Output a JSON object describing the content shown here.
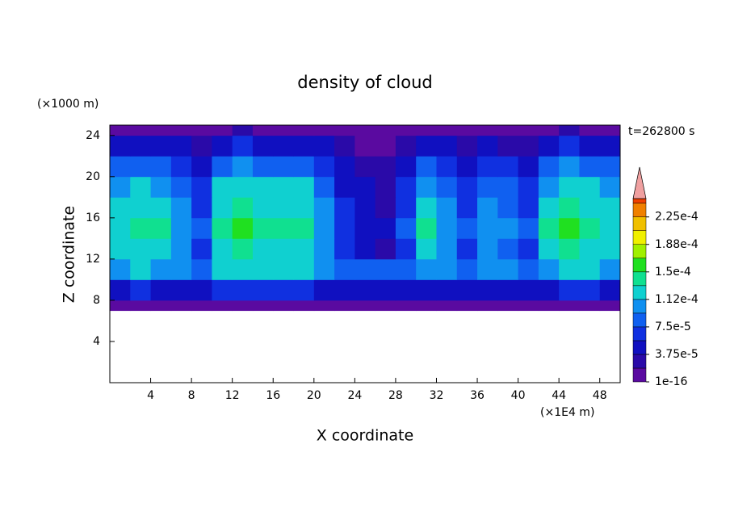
{
  "chart_data": {
    "type": "contour",
    "title": "density of cloud",
    "x_label": "X coordinate",
    "y_label": "Z coordinate",
    "x_unit": "(×1E4 m)",
    "y_unit": "(×1000 m)",
    "annotation": "t=262800 s",
    "xlim": [
      0,
      50
    ],
    "ylim": [
      0,
      25
    ],
    "xticks": [
      4,
      8,
      12,
      16,
      20,
      24,
      28,
      32,
      36,
      40,
      44,
      48
    ],
    "yticks": [
      4,
      8,
      12,
      16,
      20,
      24
    ],
    "x_edges": [
      0,
      2,
      4,
      6,
      8,
      10,
      12,
      14,
      16,
      18,
      20,
      22,
      24,
      26,
      28,
      30,
      32,
      34,
      36,
      38,
      40,
      42,
      44,
      46,
      48,
      50
    ],
    "y_edges": [
      7,
      8,
      10,
      12,
      14,
      16,
      18,
      20,
      22,
      24,
      25
    ],
    "values": [
      [
        1.5e-05,
        1.5e-05,
        1.5e-05,
        1.5e-05,
        1.5e-05,
        1.5e-05,
        1.5e-05,
        1.5e-05,
        1.5e-05,
        1.5e-05,
        1.5e-05,
        1.5e-05,
        1.5e-05,
        1.5e-05,
        1.5e-05,
        1.5e-05,
        1.5e-05,
        1.5e-05,
        1.5e-05,
        1.5e-05,
        1.5e-05,
        1.5e-05,
        1.5e-05,
        1.5e-05,
        1.5e-05
      ],
      [
        5.4e-05,
        5.7e-05,
        5.6e-05,
        5.1e-05,
        4.5e-05,
        5.7e-05,
        6e-05,
        5.7e-05,
        5.7e-05,
        5.7e-05,
        5.1e-05,
        4.2e-05,
        3.9e-05,
        3.8e-05,
        4.5e-05,
        5.6e-05,
        5.1e-05,
        4.5e-05,
        5.1e-05,
        4.8e-05,
        4.5e-05,
        5.6e-05,
        5.9e-05,
        5.7e-05,
        5.4e-05
      ],
      [
        0.000108,
        0.000114,
        0.000111,
        0.000102,
        9e-05,
        0.000114,
        0.00012,
        0.000114,
        0.000114,
        0.000114,
        0.000102,
        8.4e-05,
        7.8e-05,
        7.5e-05,
        9e-05,
        0.000111,
        0.000102,
        9e-05,
        0.000102,
        9.6e-05,
        9e-05,
        0.000111,
        0.000117,
        0.000114,
        0.000108
      ],
      [
        0.000116,
        0.00013,
        0.000123,
        0.000102,
        7.3e-05,
        0.00013,
        0.000145,
        0.00013,
        0.00013,
        0.00013,
        0.000102,
        5.8e-05,
        4.4e-05,
        3.6e-05,
        7.3e-05,
        0.000123,
        0.000102,
        7.3e-05,
        0.000102,
        8.7e-05,
        7.3e-05,
        0.000123,
        0.000138,
        0.00013,
        0.000116
      ],
      [
        0.000128,
        0.000144,
        0.000136,
        0.000112,
        8e-05,
        0.000144,
        0.00016,
        0.000144,
        0.000144,
        0.000144,
        0.000112,
        6.4e-05,
        4.8e-05,
        4e-05,
        8e-05,
        0.000136,
        0.000112,
        8e-05,
        0.000112,
        9.6e-05,
        8e-05,
        0.000136,
        0.000152,
        0.000144,
        0.000128
      ],
      [
        0.000116,
        0.00013,
        0.000123,
        0.000102,
        7.3e-05,
        0.00013,
        0.000145,
        0.00013,
        0.00013,
        0.00013,
        0.000102,
        5.8e-05,
        4.4e-05,
        3.6e-05,
        7.3e-05,
        0.000123,
        0.000102,
        7.3e-05,
        0.000102,
        8.7e-05,
        7.3e-05,
        0.000123,
        0.000138,
        0.00013,
        0.000116
      ],
      [
        0.000104,
        0.000117,
        0.00011,
        9.1e-05,
        6.5e-05,
        0.000117,
        0.00013,
        0.000117,
        0.000117,
        0.000117,
        9.1e-05,
        5.2e-05,
        3.9e-05,
        3.3e-05,
        6.5e-05,
        0.00011,
        9.1e-05,
        6.5e-05,
        9.1e-05,
        7.8e-05,
        6.5e-05,
        0.00011,
        0.000124,
        0.000117,
        0.000104
      ],
      [
        8e-05,
        9e-05,
        8.5e-05,
        7e-05,
        5e-05,
        9e-05,
        0.0001,
        9e-05,
        9e-05,
        9e-05,
        7e-05,
        4e-05,
        3e-05,
        2.5e-05,
        5e-05,
        8.5e-05,
        7e-05,
        5e-05,
        7e-05,
        6e-05,
        5e-05,
        8.5e-05,
        9.5e-05,
        9e-05,
        8e-05
      ],
      [
        4.8e-05,
        5.4e-05,
        5.1e-05,
        4.2e-05,
        3e-05,
        5.4e-05,
        6e-05,
        5.4e-05,
        5.4e-05,
        5.4e-05,
        4.2e-05,
        2.4e-05,
        1.8e-05,
        1.5e-05,
        3e-05,
        5.1e-05,
        4.2e-05,
        3e-05,
        4.2e-05,
        3.6e-05,
        3e-05,
        5.1e-05,
        5.7e-05,
        5.4e-05,
        4.8e-05
      ],
      [
        1.6e-05,
        1.8e-05,
        1.7e-05,
        1.4e-05,
        1e-05,
        1.8e-05,
        2e-05,
        1.8e-05,
        1.8e-05,
        1.8e-05,
        1.4e-05,
        8e-06,
        6e-06,
        5e-06,
        1e-05,
        1.7e-05,
        1.4e-05,
        1e-05,
        1.4e-05,
        1.2e-05,
        1e-05,
        1.7e-05,
        1.9e-05,
        1.8e-05,
        1.6e-05
      ]
    ],
    "colorbar": {
      "clim": [
        1e-16,
        0.00025
      ],
      "levels": [
        1e-16,
        1.875e-05,
        3.75e-05,
        5.625e-05,
        7.5e-05,
        9.375e-05,
        0.0001125,
        0.00013125,
        0.00015,
        0.00016875,
        0.0001875,
        0.00020625,
        0.000225,
        0.00024375
      ],
      "colors": [
        "#5a0aa0",
        "#2a0aa8",
        "#1010c0",
        "#1030e0",
        "#1060f0",
        "#1090f0",
        "#10d0d0",
        "#10e090",
        "#20e020",
        "#a0f000",
        "#f0f000",
        "#f0c000",
        "#f08000",
        "#f04000"
      ],
      "extend_color": "#f0a0a0",
      "ticks": [
        1e-16,
        {
          "value": 3.75e-05,
          "label": "3.75e-5"
        },
        {
          "value": 7.5e-05,
          "label": "7.5e-5"
        },
        {
          "value": 0.0001125,
          "label": "1.12e-4"
        },
        {
          "value": 0.00015,
          "label": "1.5e-4"
        },
        {
          "value": 0.0001875,
          "label": "1.88e-4"
        },
        {
          "value": 0.000225,
          "label": "2.25e-4"
        }
      ]
    }
  }
}
